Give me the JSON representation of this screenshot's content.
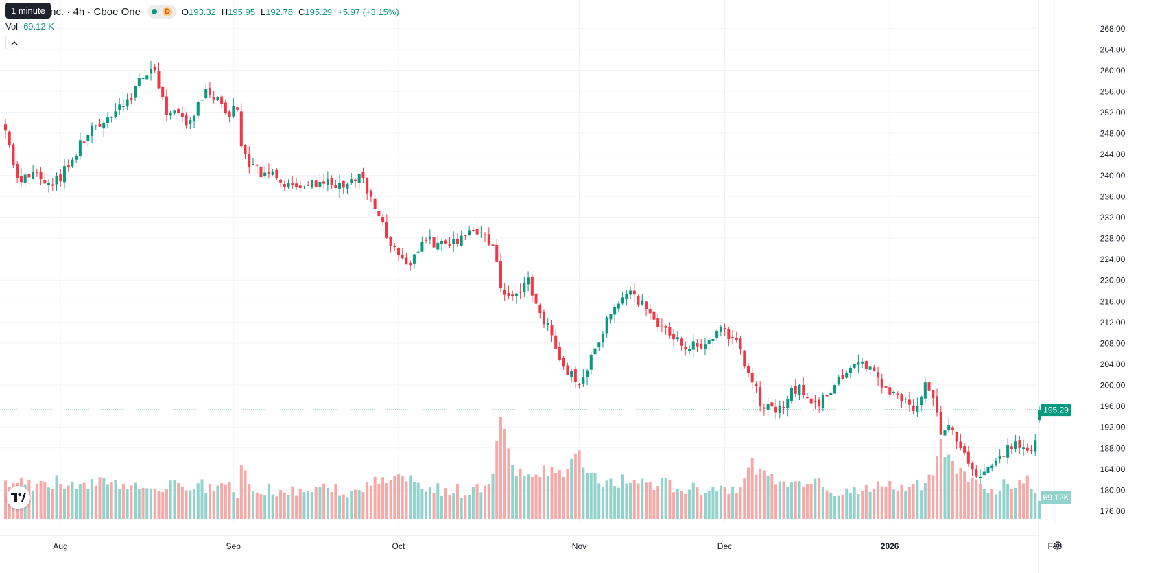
{
  "header": {
    "tooltip": "1 minute",
    "symbol_title": "le US, Inc. · 4h · Cboe One",
    "market_badge": "D",
    "ohlc": [
      {
        "key": "O",
        "value": "193.32"
      },
      {
        "key": "H",
        "value": "195.95"
      },
      {
        "key": "L",
        "value": "192.78"
      },
      {
        "key": "C",
        "value": "195.29"
      }
    ],
    "change": "+5.97 (+3.15%)",
    "vol_label": "Vol",
    "vol_value": "69.12 K"
  },
  "icons": {
    "collapse": "chevron-up-icon",
    "logo": "tradingview-logo",
    "settings": "gear-icon"
  },
  "colors": {
    "up": "#089981",
    "down": "#f23645",
    "up_volume": "#92d2cc",
    "down_volume": "#f7a9a7",
    "price_line": "#089981"
  },
  "chart_data": {
    "type": "candlestick",
    "timeframe": "4h",
    "y_ticks": [
      "268.00",
      "264.00",
      "260.00",
      "256.00",
      "252.00",
      "248.00",
      "244.00",
      "240.00",
      "236.00",
      "232.00",
      "228.00",
      "224.00",
      "220.00",
      "216.00",
      "212.00",
      "208.00",
      "204.00",
      "200.00",
      "196.00",
      "192.00",
      "188.00",
      "184.00",
      "180.00",
      "176.00"
    ],
    "ylim": [
      174.5,
      270
    ],
    "x_ticks": [
      {
        "label": "Aug",
        "index": 7,
        "bold": false
      },
      {
        "label": "Sep",
        "index": 51,
        "bold": false
      },
      {
        "label": "Oct",
        "index": 93,
        "bold": false
      },
      {
        "label": "Nov",
        "index": 139,
        "bold": false
      },
      {
        "label": "Dec",
        "index": 176,
        "bold": false
      },
      {
        "label": "2026",
        "index": 218,
        "bold": true
      },
      {
        "label": "Feb",
        "index": 260,
        "bold": false
      }
    ],
    "last_price": "195.29",
    "last_volume": "69.12K",
    "volume_max": 100,
    "keypoints": [
      {
        "i": 0,
        "close": 248.5,
        "vol": 30
      },
      {
        "i": 3,
        "close": 239.5,
        "vol": 28
      },
      {
        "i": 8,
        "close": 240.5,
        "vol": 27
      },
      {
        "i": 12,
        "close": 238.0,
        "vol": 29
      },
      {
        "i": 16,
        "close": 241.5,
        "vol": 27
      },
      {
        "i": 22,
        "close": 249.5,
        "vol": 28
      },
      {
        "i": 26,
        "close": 251.0,
        "vol": 27
      },
      {
        "i": 31,
        "close": 254.5,
        "vol": 28
      },
      {
        "i": 35,
        "close": 258.5,
        "vol": 25
      },
      {
        "i": 38,
        "close": 260.0,
        "vol": 24
      },
      {
        "i": 41,
        "close": 251.5,
        "vol": 26
      },
      {
        "i": 47,
        "close": 250.5,
        "vol": 24
      },
      {
        "i": 51,
        "close": 256.5,
        "vol": 26
      },
      {
        "i": 56,
        "close": 251.8,
        "vol": 27
      },
      {
        "i": 59,
        "close": 252.5,
        "vol": 22
      },
      {
        "i": 60,
        "close": 245.5,
        "vol": 46
      },
      {
        "i": 62,
        "close": 241.5,
        "vol": 25
      },
      {
        "i": 66,
        "close": 240.5,
        "vol": 24
      },
      {
        "i": 72,
        "close": 238.5,
        "vol": 22
      },
      {
        "i": 78,
        "close": 239.0,
        "vol": 22
      },
      {
        "i": 85,
        "close": 238.5,
        "vol": 23
      },
      {
        "i": 91,
        "close": 239.5,
        "vol": 22
      },
      {
        "i": 94,
        "close": 233.5,
        "vol": 28
      },
      {
        "i": 98,
        "close": 226.5,
        "vol": 28
      },
      {
        "i": 102,
        "close": 223.0,
        "vol": 30
      },
      {
        "i": 107,
        "close": 227.5,
        "vol": 22
      },
      {
        "i": 112,
        "close": 227.0,
        "vol": 22
      },
      {
        "i": 119,
        "close": 229.5,
        "vol": 22
      },
      {
        "i": 122,
        "close": 228.5,
        "vol": 22
      },
      {
        "i": 124,
        "close": 226.5,
        "vol": 36
      },
      {
        "i": 126,
        "close": 218.5,
        "vol": 85
      },
      {
        "i": 129,
        "close": 217.0,
        "vol": 42
      },
      {
        "i": 133,
        "close": 220.5,
        "vol": 30
      },
      {
        "i": 135,
        "close": 215.5,
        "vol": 38
      },
      {
        "i": 139,
        "close": 209.5,
        "vol": 40
      },
      {
        "i": 142,
        "close": 203.5,
        "vol": 33
      },
      {
        "i": 146,
        "close": 200.0,
        "vol": 50
      },
      {
        "i": 150,
        "close": 207.0,
        "vol": 30
      },
      {
        "i": 154,
        "close": 213.5,
        "vol": 28
      },
      {
        "i": 159,
        "close": 218.0,
        "vol": 30
      },
      {
        "i": 163,
        "close": 214.5,
        "vol": 28
      },
      {
        "i": 167,
        "close": 211.0,
        "vol": 27
      },
      {
        "i": 172,
        "close": 207.5,
        "vol": 25
      },
      {
        "i": 177,
        "close": 207.0,
        "vol": 24
      },
      {
        "i": 182,
        "close": 211.0,
        "vol": 25
      },
      {
        "i": 186,
        "close": 208.5,
        "vol": 26
      },
      {
        "i": 190,
        "close": 200.5,
        "vol": 42
      },
      {
        "i": 193,
        "close": 195.5,
        "vol": 32
      },
      {
        "i": 197,
        "close": 196.0,
        "vol": 28
      },
      {
        "i": 202,
        "close": 200.0,
        "vol": 27
      },
      {
        "i": 207,
        "close": 196.0,
        "vol": 32
      },
      {
        "i": 212,
        "close": 201.5,
        "vol": 20
      },
      {
        "i": 216,
        "close": 204.0,
        "vol": 20
      },
      {
        "i": 220,
        "close": 203.5,
        "vol": 24
      },
      {
        "i": 224,
        "close": 199.5,
        "vol": 26
      },
      {
        "i": 228,
        "close": 197.0,
        "vol": 27
      },
      {
        "i": 232,
        "close": 196.0,
        "vol": 28
      },
      {
        "i": 234,
        "close": 200.5,
        "vol": 28
      },
      {
        "i": 236,
        "close": 197.5,
        "vol": 40
      },
      {
        "i": 238,
        "close": 190.5,
        "vol": 60
      },
      {
        "i": 241,
        "close": 191.5,
        "vol": 40
      },
      {
        "i": 245,
        "close": 185.0,
        "vol": 30
      },
      {
        "i": 248,
        "close": 182.5,
        "vol": 26
      },
      {
        "i": 252,
        "close": 185.5,
        "vol": 24
      },
      {
        "i": 255,
        "close": 188.5,
        "vol": 26
      },
      {
        "i": 258,
        "close": 188.0,
        "vol": 28
      },
      {
        "i": 260,
        "close": 187.5,
        "vol": 30
      },
      {
        "i": 262,
        "close": 189.5,
        "vol": 26
      },
      {
        "i": 263,
        "close": 195.29,
        "vol": 14
      }
    ]
  }
}
